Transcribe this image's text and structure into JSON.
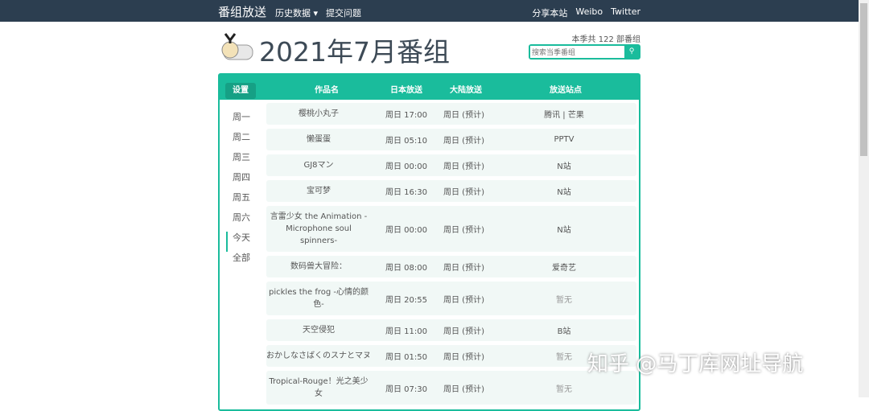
{
  "nav": {
    "brand": "番组放送",
    "history": "历史数据 ▾",
    "submit": "提交问题",
    "share": "分享本站",
    "weibo": "Weibo",
    "twitter": "Twitter"
  },
  "header": {
    "title": "2021年7月番组",
    "count": "本季共 122 部番组",
    "search_placeholder": "搜索当季番组"
  },
  "table": {
    "settings": "设置",
    "cols": [
      "作品名",
      "日本放送",
      "大陆放送",
      "放送站点"
    ]
  },
  "sidebar": [
    "周一",
    "周二",
    "周三",
    "周四",
    "周五",
    "周六",
    "今天",
    "全部"
  ],
  "rows": [
    {
      "name": "樱桃小丸子",
      "jp": "周日  17:00",
      "cn": "周日  (预计)",
      "site": "腾讯 | 芒果"
    },
    {
      "name": "懒蛋蛋",
      "jp": "周日  05:10",
      "cn": "周日  (预计)",
      "site": "PPTV"
    },
    {
      "name": "GJ8マン",
      "jp": "周日  00:00",
      "cn": "周日  (预计)",
      "site": "N站"
    },
    {
      "name": "宝可梦",
      "jp": "周日  16:30",
      "cn": "周日  (预计)",
      "site": "N站"
    },
    {
      "name": "言雷少女 the Animation -Microphone soul spinners-",
      "jp": "周日  00:00",
      "cn": "周日  (预计)",
      "site": "N站"
    },
    {
      "name": "数码兽大冒险：",
      "jp": "周日  08:00",
      "cn": "周日  (预计)",
      "site": "爱奇艺"
    },
    {
      "name": "pickles the frog -心情的颜色-",
      "jp": "周日  20:55",
      "cn": "周日  (预计)",
      "site": "暂无"
    },
    {
      "name": "天空侵犯",
      "jp": "周日  11:00",
      "cn": "周日  (预计)",
      "site": "B站"
    },
    {
      "name": "おかしなさばくのスナとマヌ",
      "jp": "周日  01:50",
      "cn": "周日  (预计)",
      "site": "暂无"
    },
    {
      "name": "Tropical-Rouge！光之美少女",
      "jp": "周日  07:30",
      "cn": "周日  (预计)",
      "site": "暂无"
    }
  ],
  "watermark": "知乎 @马丁库网址导航"
}
